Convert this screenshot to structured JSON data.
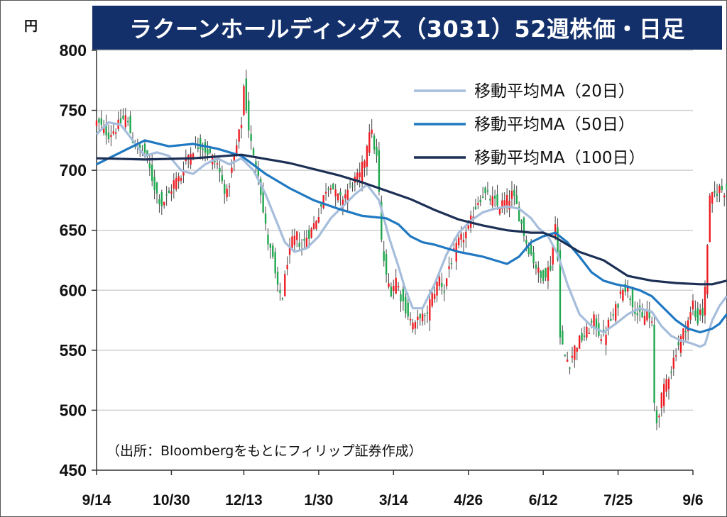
{
  "title": "ラクーンホールディングス（3031）52週株価・日足",
  "unit": "円",
  "source": "（出所：Bloombergをもとにフィリップ証券作成）",
  "colors": {
    "title_bg": "#13306b",
    "up": "#ee1d23",
    "down": "#1fa84f",
    "ma20": "#a6bddb",
    "ma50": "#1f78c1",
    "ma100": "#1c2f55",
    "grid": "#d0d0d0"
  },
  "chart_data": {
    "type": "candlestick",
    "title": "ラクーンホールディングス（3031）52週株価・日足",
    "ylabel": "円",
    "ylim": [
      450,
      800
    ],
    "yticks": [
      800,
      750,
      700,
      650,
      600,
      550,
      500,
      450
    ],
    "ytick_labels": [
      "800",
      "750",
      "700",
      "650",
      "600",
      "550",
      "500",
      "450"
    ],
    "xticks": [
      0,
      31,
      61,
      92,
      123,
      154,
      185,
      216,
      247
    ],
    "xtick_labels": [
      "9/14",
      "10/30",
      "12/13",
      "1/30",
      "3/14",
      "4/26",
      "6/12",
      "7/25",
      "9/6"
    ],
    "x_index_max": 247,
    "grid": true,
    "legend_position": "top-right",
    "close_anchors": [
      [
        0,
        740
      ],
      [
        5,
        730
      ],
      [
        8,
        735
      ],
      [
        12,
        745
      ],
      [
        15,
        725
      ],
      [
        18,
        715
      ],
      [
        20,
        715
      ],
      [
        22,
        700
      ],
      [
        25,
        680
      ],
      [
        27,
        672
      ],
      [
        30,
        680
      ],
      [
        32,
        690
      ],
      [
        35,
        695
      ],
      [
        37,
        710
      ],
      [
        40,
        718
      ],
      [
        43,
        722
      ],
      [
        46,
        715
      ],
      [
        50,
        705
      ],
      [
        52,
        690
      ],
      [
        54,
        680
      ],
      [
        56,
        700
      ],
      [
        58,
        720
      ],
      [
        60,
        740
      ],
      [
        61,
        770
      ],
      [
        63,
        735
      ],
      [
        65,
        710
      ],
      [
        67,
        700
      ],
      [
        69,
        665
      ],
      [
        71,
        640
      ],
      [
        73,
        625
      ],
      [
        75,
        600
      ],
      [
        77,
        595
      ],
      [
        79,
        625
      ],
      [
        81,
        640
      ],
      [
        83,
        645
      ],
      [
        85,
        635
      ],
      [
        87,
        645
      ],
      [
        89,
        650
      ],
      [
        91,
        660
      ],
      [
        93,
        670
      ],
      [
        95,
        685
      ],
      [
        97,
        690
      ],
      [
        99,
        680
      ],
      [
        101,
        675
      ],
      [
        103,
        680
      ],
      [
        106,
        690
      ],
      [
        109,
        695
      ],
      [
        111,
        710
      ],
      [
        113,
        735
      ],
      [
        114,
        730
      ],
      [
        115,
        720
      ],
      [
        116,
        710
      ],
      [
        117,
        680
      ],
      [
        118,
        640
      ],
      [
        120,
        610
      ],
      [
        122,
        600
      ],
      [
        124,
        610
      ],
      [
        126,
        595
      ],
      [
        128,
        585
      ],
      [
        130,
        575
      ],
      [
        132,
        570
      ],
      [
        134,
        580
      ],
      [
        136,
        575
      ],
      [
        138,
        590
      ],
      [
        140,
        600
      ],
      [
        142,
        610
      ],
      [
        144,
        600
      ],
      [
        146,
        620
      ],
      [
        148,
        630
      ],
      [
        150,
        640
      ],
      [
        152,
        645
      ],
      [
        154,
        650
      ],
      [
        156,
        665
      ],
      [
        158,
        675
      ],
      [
        160,
        680
      ],
      [
        162,
        678
      ],
      [
        164,
        675
      ],
      [
        166,
        670
      ],
      [
        168,
        672
      ],
      [
        170,
        675
      ],
      [
        172,
        680
      ],
      [
        174,
        670
      ],
      [
        176,
        655
      ],
      [
        178,
        640
      ],
      [
        180,
        630
      ],
      [
        182,
        620
      ],
      [
        184,
        610
      ],
      [
        186,
        615
      ],
      [
        188,
        620
      ],
      [
        190,
        655
      ],
      [
        191,
        630
      ],
      [
        192,
        560
      ],
      [
        194,
        545
      ],
      [
        196,
        540
      ],
      [
        198,
        552
      ],
      [
        200,
        558
      ],
      [
        202,
        562
      ],
      [
        204,
        568
      ],
      [
        206,
        575
      ],
      [
        208,
        565
      ],
      [
        210,
        560
      ],
      [
        212,
        572
      ],
      [
        214,
        578
      ],
      [
        216,
        590
      ],
      [
        218,
        605
      ],
      [
        220,
        600
      ],
      [
        222,
        590
      ],
      [
        224,
        580
      ],
      [
        226,
        575
      ],
      [
        228,
        582
      ],
      [
        230,
        570
      ],
      [
        231,
        505
      ],
      [
        232,
        490
      ],
      [
        234,
        510
      ],
      [
        236,
        525
      ],
      [
        238,
        535
      ],
      [
        240,
        550
      ],
      [
        242,
        560
      ],
      [
        244,
        570
      ],
      [
        246,
        580
      ],
      [
        247,
        590
      ],
      [
        248,
        578
      ],
      [
        249,
        575
      ],
      [
        250,
        585
      ],
      [
        251,
        580
      ],
      [
        252,
        600
      ],
      [
        253,
        640
      ],
      [
        254,
        675
      ],
      [
        256,
        680
      ],
      [
        258,
        685
      ],
      [
        260,
        683
      ],
      [
        261,
        685
      ]
    ],
    "series": [
      {
        "name": "移動平均MA（20日）",
        "color": "#a6bddb",
        "points": [
          [
            0,
            730
          ],
          [
            5,
            740
          ],
          [
            10,
            738
          ],
          [
            15,
            725
          ],
          [
            20,
            712
          ],
          [
            25,
            715
          ],
          [
            30,
            712
          ],
          [
            35,
            700
          ],
          [
            40,
            697
          ],
          [
            45,
            705
          ],
          [
            50,
            710
          ],
          [
            55,
            705
          ],
          [
            60,
            710
          ],
          [
            65,
            700
          ],
          [
            70,
            680
          ],
          [
            75,
            655
          ],
          [
            78,
            640
          ],
          [
            82,
            632
          ],
          [
            87,
            635
          ],
          [
            92,
            645
          ],
          [
            97,
            660
          ],
          [
            102,
            670
          ],
          [
            107,
            680
          ],
          [
            112,
            688
          ],
          [
            117,
            675
          ],
          [
            121,
            645
          ],
          [
            125,
            620
          ],
          [
            128,
            600
          ],
          [
            131,
            585
          ],
          [
            135,
            585
          ],
          [
            140,
            605
          ],
          [
            145,
            630
          ],
          [
            150,
            648
          ],
          [
            155,
            658
          ],
          [
            160,
            665
          ],
          [
            165,
            668
          ],
          [
            170,
            670
          ],
          [
            175,
            668
          ],
          [
            180,
            660
          ],
          [
            183,
            652
          ],
          [
            187,
            645
          ],
          [
            191,
            630
          ],
          [
            195,
            605
          ],
          [
            200,
            580
          ],
          [
            205,
            570
          ],
          [
            210,
            565
          ],
          [
            215,
            572
          ],
          [
            220,
            580
          ],
          [
            225,
            585
          ],
          [
            230,
            582
          ],
          [
            234,
            570
          ],
          [
            238,
            562
          ],
          [
            242,
            558
          ],
          [
            246,
            556
          ],
          [
            250,
            553
          ],
          [
            252,
            555
          ],
          [
            255,
            575
          ],
          [
            258,
            587
          ],
          [
            261,
            595
          ]
        ]
      },
      {
        "name": "移動平均MA（50日）",
        "color": "#1f78c1",
        "points": [
          [
            0,
            705
          ],
          [
            10,
            715
          ],
          [
            20,
            725
          ],
          [
            30,
            720
          ],
          [
            40,
            722
          ],
          [
            50,
            718
          ],
          [
            60,
            712
          ],
          [
            70,
            697
          ],
          [
            80,
            685
          ],
          [
            90,
            675
          ],
          [
            100,
            668
          ],
          [
            110,
            662
          ],
          [
            120,
            660
          ],
          [
            125,
            655
          ],
          [
            130,
            645
          ],
          [
            135,
            640
          ],
          [
            140,
            638
          ],
          [
            145,
            635
          ],
          [
            150,
            632
          ],
          [
            155,
            630
          ],
          [
            160,
            628
          ],
          [
            165,
            625
          ],
          [
            170,
            622
          ],
          [
            175,
            628
          ],
          [
            180,
            640
          ],
          [
            185,
            645
          ],
          [
            190,
            648
          ],
          [
            195,
            640
          ],
          [
            200,
            628
          ],
          [
            205,
            615
          ],
          [
            210,
            608
          ],
          [
            215,
            605
          ],
          [
            220,
            603
          ],
          [
            225,
            600
          ],
          [
            230,
            595
          ],
          [
            235,
            585
          ],
          [
            240,
            575
          ],
          [
            245,
            568
          ],
          [
            250,
            565
          ],
          [
            255,
            568
          ],
          [
            258,
            572
          ],
          [
            261,
            580
          ]
        ]
      },
      {
        "name": "移動平均MA（100日）",
        "color": "#1c2f55",
        "points": [
          [
            0,
            710
          ],
          [
            20,
            709
          ],
          [
            40,
            710
          ],
          [
            60,
            713
          ],
          [
            80,
            706
          ],
          [
            100,
            696
          ],
          [
            110,
            690
          ],
          [
            120,
            683
          ],
          [
            130,
            676
          ],
          [
            140,
            667
          ],
          [
            150,
            659
          ],
          [
            160,
            654
          ],
          [
            170,
            650
          ],
          [
            180,
            648
          ],
          [
            185,
            648
          ],
          [
            190,
            644
          ],
          [
            195,
            638
          ],
          [
            200,
            632
          ],
          [
            210,
            625
          ],
          [
            220,
            612
          ],
          [
            225,
            610
          ],
          [
            230,
            608
          ],
          [
            240,
            606
          ],
          [
            250,
            605
          ],
          [
            255,
            605
          ],
          [
            261,
            608
          ]
        ]
      }
    ]
  }
}
